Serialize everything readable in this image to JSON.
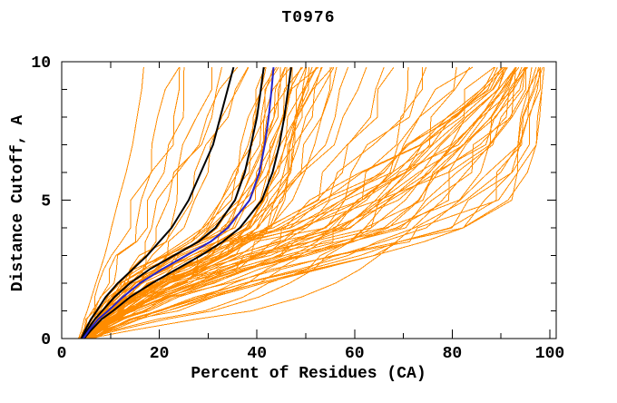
{
  "chart_data": {
    "type": "line",
    "title": "T0976",
    "xlabel": "Percent of Residues (CA)",
    "ylabel": "Distance Cutoff, A",
    "xlim": [
      0,
      100
    ],
    "ylim": [
      0,
      10
    ],
    "grid": false,
    "legend": "none",
    "axes": {
      "x_major_ticks": [
        0,
        20,
        40,
        60,
        80,
        100
      ],
      "x_minor_ticks": [
        10,
        30,
        50,
        70,
        90
      ],
      "x_top_ticks": [
        10,
        20,
        30,
        40,
        50,
        60,
        70,
        80,
        90
      ],
      "y_major_ticks": [
        0,
        5,
        10
      ],
      "y_minor_ticks": [
        1,
        2,
        3,
        4,
        6,
        7,
        8,
        9
      ]
    },
    "colors": {
      "ensemble": "#ff8c00",
      "highlight": "#000000",
      "selected": "#2424cc",
      "axis": "#000000",
      "background": "#ffffff"
    },
    "y_knots": [
      0,
      0.3,
      0.7,
      1,
      1.5,
      2,
      2.5,
      3,
      3.5,
      4,
      5,
      6,
      7,
      8,
      9,
      9.8
    ],
    "highlight_series": [
      {
        "name": "model-black-1",
        "color": "#000000",
        "width": 2,
        "x": [
          4,
          4.8,
          6,
          7.2,
          9,
          11.5,
          14.5,
          17.5,
          20,
          22.5,
          26,
          28.5,
          31,
          32.5,
          34,
          35.2
        ]
      },
      {
        "name": "model-black-2",
        "color": "#000000",
        "width": 2,
        "x": [
          4.2,
          5.2,
          6.8,
          8.3,
          10.8,
          14,
          18,
          23,
          28,
          31.5,
          35.5,
          37.5,
          38.8,
          40,
          40.8,
          41.4
        ]
      },
      {
        "name": "model-black-3",
        "color": "#000000",
        "width": 2,
        "x": [
          4.6,
          6,
          8.2,
          10.5,
          14,
          18.5,
          23.5,
          28.5,
          33,
          36.5,
          41,
          43.2,
          44.6,
          45.6,
          46.4,
          47
        ]
      },
      {
        "name": "model-blue",
        "color": "#2424cc",
        "width": 2,
        "x": [
          4.4,
          5.6,
          7.5,
          9.5,
          12.5,
          16,
          20.5,
          25.5,
          30.5,
          34,
          38.5,
          40.5,
          41.6,
          42.4,
          43,
          43.4
        ]
      }
    ],
    "ensemble": {
      "color": "#ff8c00",
      "width": 1,
      "clusters": [
        {
          "name": "left-sparse",
          "count": 9,
          "seed": 7,
          "jitter": 0.18,
          "left_x": [
            3.5,
            4,
            4.8,
            5.5,
            6.5,
            7.5,
            8.5,
            9.5,
            10.3,
            11,
            12.5,
            14,
            15.5,
            16.5,
            17.5,
            18
          ],
          "right_x": [
            4.5,
            6,
            8,
            10,
            13,
            16,
            18.5,
            21,
            23,
            24.5,
            27,
            29.5,
            32,
            34,
            36,
            38
          ]
        },
        {
          "name": "central-band",
          "count": 26,
          "seed": 11,
          "jitter": 0.14,
          "left_x": [
            3.8,
            4.6,
            6,
            7.2,
            9.2,
            12,
            15.5,
            20,
            25,
            29,
            33.5,
            36,
            37.5,
            39,
            40.5,
            42.5
          ],
          "right_x": [
            5.5,
            7.5,
            10.5,
            13.5,
            18,
            24,
            30,
            35.5,
            39.5,
            42.5,
            46.5,
            49,
            51,
            52.5,
            54.5,
            56.5
          ]
        },
        {
          "name": "mid-scatter",
          "count": 11,
          "seed": 23,
          "jitter": 0.15,
          "left_x": [
            4,
            5.2,
            7,
            8.8,
            12,
            16,
            21,
            27,
            33,
            38,
            45,
            50,
            53.5,
            56.5,
            58.5,
            60
          ],
          "right_x": [
            5.5,
            8,
            11.5,
            15,
            21,
            29,
            37,
            45,
            52,
            58,
            66,
            72,
            77,
            81,
            84.5,
            87
          ]
        },
        {
          "name": "right-bundle",
          "count": 30,
          "seed": 5,
          "jitter": 0.13,
          "left_x": [
            4,
            5.3,
            7.2,
            9.5,
            13,
            17.5,
            22.5,
            28.5,
            35,
            42,
            53,
            63,
            72,
            80,
            86.5,
            89.5
          ],
          "right_x": [
            6.5,
            10,
            15.5,
            21,
            30,
            40,
            51,
            62,
            72,
            80,
            90,
            94,
            95.8,
            96.9,
            97.7,
            98.3
          ]
        },
        {
          "name": "bottom-hug",
          "count": 4,
          "seed": 3,
          "jitter": 0.1,
          "left_x": [
            4.5,
            8,
            15,
            22,
            30,
            37,
            42,
            47,
            51,
            55,
            61,
            67,
            73,
            79,
            85,
            88.5
          ],
          "right_x": [
            5.5,
            14,
            27,
            38,
            48,
            55,
            60,
            64,
            67.5,
            71,
            77,
            82.5,
            87.5,
            91.5,
            95,
            97.5
          ]
        }
      ]
    }
  }
}
